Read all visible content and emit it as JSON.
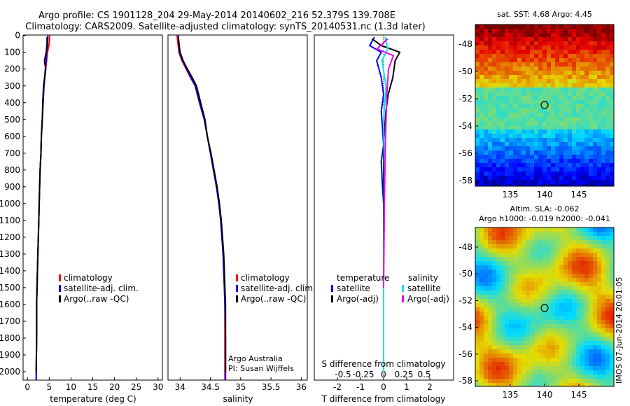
{
  "titles": {
    "line1": "Argo profile: CS 1901128_204 29-May-2014 20140602_216 52.379S 139.708E",
    "line2": "Climatology: CARS2009. Satellite-adjusted climatology: synTS_20140531.nc (1.3d later)"
  },
  "depth_ticks": [
    0,
    100,
    200,
    300,
    400,
    500,
    600,
    700,
    800,
    900,
    1000,
    1100,
    1200,
    1300,
    1400,
    1500,
    1600,
    1700,
    1800,
    1900,
    2000
  ],
  "panels": {
    "temperature": {
      "xlabel": "temperature (deg C)",
      "xticks": [
        0,
        5,
        10,
        15,
        20,
        25,
        30
      ],
      "legend": [
        "climatology",
        "satellite-adj. clim.",
        "Argo(..raw -QC)"
      ]
    },
    "salinity": {
      "xlabel": "salinity",
      "xticks": [
        "34",
        "34.5",
        "35",
        "35.5",
        "36"
      ],
      "legend": [
        "climatology",
        "satellite-adj. clim.",
        "Argo(..raw -QC)"
      ],
      "credit1": "Argo Australia",
      "credit2": "PI: Susan Wijffels"
    },
    "difference": {
      "xlabel": "T difference from climatology",
      "top_label": "S difference from climatology",
      "xticks_t": [
        "-2",
        "-1",
        "0",
        "1",
        "2"
      ],
      "xticks_s": [
        "-0.5",
        "-0.25",
        "0",
        "0.25",
        "0.5"
      ],
      "legend_t_title": "temperature",
      "legend_s_title": "salinity",
      "legend_t": [
        "satellite",
        "Argo(-adj)"
      ],
      "legend_s": [
        "satellite",
        "Argo(-adj)"
      ]
    },
    "sst_map": {
      "title": "sat. SST: 4.68  Argo: 4.45",
      "yticks": [
        "-48",
        "-50",
        "-52",
        "-54",
        "-56",
        "-58"
      ],
      "xticks": [
        "135",
        "140",
        "145"
      ]
    },
    "sla_map": {
      "title1": "Altim. SLA: -0.062",
      "title2": "Argo h1000: -0.019 h2000: -0.041",
      "yticks": [
        "-48",
        "-50",
        "-52",
        "-54",
        "-56",
        "-58"
      ],
      "xticks": [
        "135",
        "140",
        "145"
      ],
      "side_label": "IMOS 07-Jun-2014 20:01:05"
    }
  },
  "colors": {
    "climatology": "#ff0000",
    "satellite": "#0000ff",
    "argo": "#000000",
    "sal_satellite": "#00e5ee",
    "sal_argo": "#ee00ee"
  },
  "chart_data": [
    {
      "type": "line",
      "xlabel": "temperature (deg C)",
      "ylabel": "depth",
      "xlim": [
        -1,
        31
      ],
      "ylim": [
        2050,
        0
      ],
      "series": [
        {
          "name": "climatology",
          "x": [
            5.1,
            5.0,
            4.6,
            4.4,
            4.2,
            3.8,
            3.6,
            3.4,
            3.2,
            3.1,
            2.9,
            2.8,
            2.7,
            2.6,
            2.5,
            2.4,
            2.3,
            2.2,
            2.1,
            2.1,
            2.0,
            2.0
          ],
          "depth": [
            0,
            50,
            100,
            150,
            200,
            300,
            400,
            500,
            600,
            700,
            800,
            900,
            1000,
            1100,
            1200,
            1300,
            1400,
            1500,
            1600,
            1800,
            2000,
            2050
          ]
        },
        {
          "name": "satellite-adj. clim.",
          "x": [
            4.7,
            4.6,
            4.4,
            4.3,
            4.1,
            3.8,
            3.6,
            3.4,
            3.2,
            3.1,
            2.9,
            2.8,
            2.7,
            2.6,
            2.5,
            2.4,
            2.3,
            2.2,
            2.1,
            2.1,
            2.0,
            2.0
          ],
          "depth": [
            0,
            50,
            100,
            150,
            200,
            300,
            400,
            500,
            600,
            700,
            800,
            900,
            1000,
            1100,
            1200,
            1300,
            1400,
            1500,
            1600,
            1800,
            2000,
            2050
          ]
        },
        {
          "name": "Argo(..raw -QC)",
          "x": [
            4.5,
            4.5,
            4.3,
            3.9,
            4.2,
            3.7,
            3.5,
            3.4,
            3.2,
            3.1,
            2.9,
            2.8,
            2.7,
            2.6,
            2.5,
            2.4,
            2.3,
            2.2,
            2.1,
            2.1,
            2.0
          ],
          "depth": [
            10,
            50,
            100,
            150,
            200,
            300,
            400,
            500,
            600,
            700,
            800,
            900,
            1000,
            1100,
            1200,
            1300,
            1400,
            1500,
            1600,
            1800,
            2000
          ]
        }
      ]
    },
    {
      "type": "line",
      "xlabel": "salinity",
      "ylabel": "depth",
      "xlim": [
        33.8,
        36.1
      ],
      "ylim": [
        2050,
        0
      ],
      "series": [
        {
          "name": "climatology",
          "x": [
            33.95,
            33.98,
            34.03,
            34.1,
            34.17,
            34.25,
            34.32,
            34.4,
            34.45,
            34.5,
            34.55,
            34.6,
            34.64,
            34.67,
            34.69,
            34.71,
            34.72,
            34.73,
            34.74,
            34.74,
            34.74
          ],
          "depth": [
            0,
            100,
            150,
            200,
            250,
            300,
            400,
            500,
            600,
            700,
            800,
            900,
            1000,
            1100,
            1200,
            1300,
            1400,
            1500,
            1600,
            1800,
            2050
          ]
        },
        {
          "name": "satellite-adj. clim.",
          "x": [
            33.97,
            33.99,
            34.04,
            34.11,
            34.18,
            34.25,
            34.32,
            34.4,
            34.45,
            34.5,
            34.55,
            34.6,
            34.64,
            34.67,
            34.69,
            34.71,
            34.72,
            34.73,
            34.74,
            34.75,
            34.75
          ],
          "depth": [
            0,
            100,
            150,
            200,
            250,
            300,
            400,
            500,
            600,
            700,
            800,
            900,
            1000,
            1100,
            1200,
            1300,
            1400,
            1500,
            1600,
            1800,
            2050
          ]
        },
        {
          "name": "Argo(..raw -QC)",
          "x": [
            33.97,
            34.0,
            34.05,
            34.12,
            34.2,
            34.27,
            34.34,
            34.41,
            34.45,
            34.51,
            34.56,
            34.61,
            34.65,
            34.68,
            34.7,
            34.72,
            34.73,
            34.74,
            34.75,
            34.75
          ],
          "depth": [
            10,
            100,
            150,
            200,
            250,
            300,
            400,
            500,
            600,
            700,
            800,
            900,
            1000,
            1100,
            1200,
            1300,
            1400,
            1500,
            1600,
            2000
          ]
        }
      ]
    },
    {
      "type": "line",
      "xlabel": "T difference from climatology",
      "ylabel": "depth",
      "xlim": [
        -2.6,
        2.6
      ],
      "ylim": [
        2050,
        0
      ],
      "series": [
        {
          "name": "temperature satellite",
          "x": [
            -0.4,
            -0.6,
            -0.1,
            -0.3,
            -0.1,
            0.0,
            -0.1,
            -0.05,
            0.0,
            -0.1,
            -0.05,
            0.0,
            0.0,
            0.0,
            0.0,
            0.0
          ],
          "depth": [
            10,
            60,
            100,
            150,
            250,
            350,
            450,
            550,
            650,
            750,
            900,
            1000,
            1200,
            1500,
            1800,
            2000
          ]
        },
        {
          "name": "temperature Argo(-adj)",
          "x": [
            -0.5,
            -0.1,
            0.7,
            0.5,
            0.4,
            0.2,
            0.1,
            0.05,
            0.0,
            0.0,
            0.0,
            0.0,
            0.0
          ],
          "depth": [
            20,
            60,
            100,
            150,
            250,
            350,
            450,
            550,
            650,
            800,
            1000,
            1500,
            2000
          ]
        },
        {
          "name": "salinity satellite",
          "x": [
            0.02,
            0.05,
            -0.02,
            0.03,
            0.0,
            0.01,
            0.0,
            0.0
          ],
          "depth": [
            10,
            80,
            150,
            300,
            500,
            800,
            1300,
            2000
          ]
        },
        {
          "name": "salinity Argo(-adj)",
          "x": [
            0.05,
            -0.08,
            0.12,
            0.06,
            0.04,
            0.03,
            0.02,
            0.01,
            0.0
          ],
          "depth": [
            20,
            80,
            120,
            200,
            350,
            500,
            700,
            1000,
            1500
          ]
        }
      ]
    }
  ]
}
